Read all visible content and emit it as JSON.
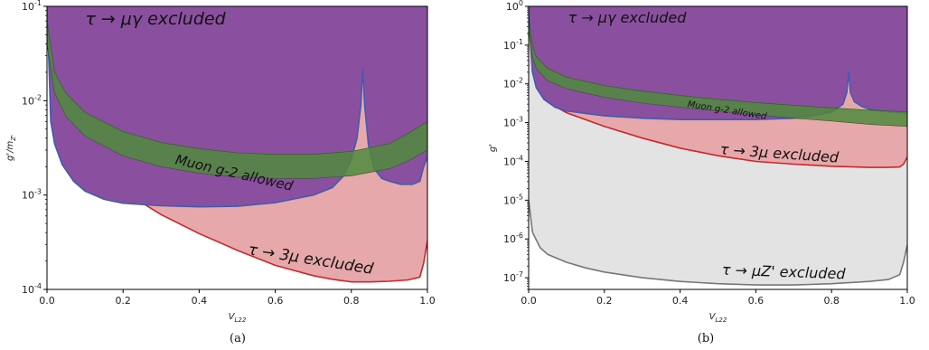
{
  "chart_data": [
    {
      "type": "area",
      "panel_caption": "(a)",
      "xlabel": "V_L22",
      "ylabel": "g'/m_Z'",
      "xlim": [
        0.0,
        1.0
      ],
      "ylim": [
        0.0001,
        0.1
      ],
      "yscale": "log",
      "x_ticks": [
        "0.0",
        "0.2",
        "0.4",
        "0.6",
        "0.8",
        "1.0"
      ],
      "y_ticks": [
        "10^-4",
        "10^-3",
        "10^-2",
        "10^-1"
      ],
      "grid": false,
      "regions": [
        {
          "name": "τ → 3μ excluded",
          "color": "#e6a8aa",
          "edge": "#d2232a",
          "boundary": {
            "x": [
              0.0,
              0.01,
              0.03,
              0.06,
              0.1,
              0.15,
              0.2,
              0.3,
              0.4,
              0.5,
              0.6,
              0.7,
              0.75,
              0.8,
              0.85,
              0.9,
              0.95,
              0.98,
              0.99,
              1.0
            ],
            "y": [
              0.1,
              0.03,
              0.01,
              0.005,
              0.0025,
              0.0016,
              0.0011,
              0.00062,
              0.00039,
              0.00026,
              0.00018,
              0.00014,
              0.000128,
              0.00012,
              0.00012,
              0.000122,
              0.000126,
              0.000135,
              0.00019,
              0.00033
            ]
          }
        },
        {
          "name": "τ → μγ excluded",
          "color": "#8b4f9f",
          "edge": "#3f5bb4",
          "boundary": {
            "x": [
              0.0,
              0.01,
              0.02,
              0.04,
              0.07,
              0.1,
              0.15,
              0.2,
              0.3,
              0.4,
              0.5,
              0.6,
              0.7,
              0.75,
              0.78,
              0.8,
              0.815,
              0.825,
              0.83,
              0.835,
              0.845,
              0.86,
              0.88,
              0.9,
              0.93,
              0.96,
              0.98,
              0.99,
              1.0
            ],
            "y": [
              0.1,
              0.006,
              0.0035,
              0.0021,
              0.0014,
              0.0011,
              0.0009,
              0.00082,
              0.00077,
              0.00075,
              0.00076,
              0.00083,
              0.001,
              0.0012,
              0.0016,
              0.0024,
              0.004,
              0.009,
              0.022,
              0.009,
              0.0034,
              0.0019,
              0.0015,
              0.0014,
              0.0013,
              0.0013,
              0.0014,
              0.002,
              0.0025
            ]
          }
        },
        {
          "name": "Muon g-2 allowed",
          "color": "#4f8a3d",
          "upper": {
            "x": [
              0.0,
              0.02,
              0.05,
              0.1,
              0.2,
              0.3,
              0.4,
              0.5,
              0.6,
              0.7,
              0.8,
              0.9,
              0.95,
              1.0
            ],
            "y": [
              0.07,
              0.02,
              0.012,
              0.0075,
              0.0047,
              0.0036,
              0.0031,
              0.0028,
              0.0027,
              0.0027,
              0.0029,
              0.0035,
              0.0045,
              0.006
            ]
          },
          "lower": {
            "x": [
              0.0,
              0.02,
              0.05,
              0.1,
              0.2,
              0.3,
              0.4,
              0.5,
              0.6,
              0.7,
              0.8,
              0.9,
              0.95,
              1.0
            ],
            "y": [
              0.04,
              0.012,
              0.0068,
              0.0042,
              0.0026,
              0.002,
              0.0017,
              0.00155,
              0.0015,
              0.0015,
              0.0016,
              0.0019,
              0.0023,
              0.003
            ]
          }
        }
      ],
      "annotations": [
        "τ → μγ excluded",
        "Muon g-2 allowed",
        "τ → 3μ excluded"
      ]
    },
    {
      "type": "area",
      "panel_caption": "(b)",
      "xlabel": "V_L22",
      "ylabel": "g'",
      "xlim": [
        0.0,
        1.0
      ],
      "ylim": [
        5e-08,
        1
      ],
      "yscale": "log",
      "x_ticks": [
        "0.0",
        "0.2",
        "0.4",
        "0.6",
        "0.8",
        "1.0"
      ],
      "y_ticks": [
        "10^-7",
        "10^-6",
        "10^-5",
        "10^-4",
        "10^-3",
        "10^-2",
        "10^-1",
        "10^0"
      ],
      "grid": false,
      "regions": [
        {
          "name": "τ → μZ' excluded",
          "color": "#e3e3e3",
          "edge": "#777777",
          "boundary": {
            "x": [
              0.0,
              0.01,
              0.03,
              0.05,
              0.1,
              0.15,
              0.2,
              0.3,
              0.4,
              0.5,
              0.6,
              0.7,
              0.8,
              0.9,
              0.95,
              0.98,
              0.99,
              1.0
            ],
            "y": [
              1e-05,
              1.5e-06,
              6e-07,
              4e-07,
              2.5e-07,
              1.8e-07,
              1.4e-07,
              1e-07,
              8e-08,
              7e-08,
              6.5e-08,
              6.5e-08,
              7e-08,
              8e-08,
              9e-08,
              1.2e-07,
              2.5e-07,
              7e-07
            ]
          }
        },
        {
          "name": "τ → 3μ excluded",
          "color": "#e6a8aa",
          "edge": "#d2232a",
          "boundary": {
            "x": [
              0.0,
              0.01,
              0.03,
              0.06,
              0.1,
              0.2,
              0.3,
              0.4,
              0.5,
              0.6,
              0.7,
              0.8,
              0.9,
              0.95,
              0.98,
              0.99,
              1.0
            ],
            "y": [
              0.5,
              0.02,
              0.006,
              0.003,
              0.0018,
              0.0008,
              0.0004,
              0.00022,
              0.00014,
              0.0001,
              8.5e-05,
              7.5e-05,
              7e-05,
              7e-05,
              7.2e-05,
              8.5e-05,
              0.00013
            ]
          }
        },
        {
          "name": "τ → μγ excluded",
          "color": "#8b4f9f",
          "edge": "#3f5bb4",
          "boundary": {
            "x": [
              0.0,
              0.01,
              0.02,
              0.04,
              0.07,
              0.1,
              0.2,
              0.3,
              0.4,
              0.5,
              0.6,
              0.7,
              0.75,
              0.8,
              0.83,
              0.84,
              0.845,
              0.85,
              0.86,
              0.88,
              0.9,
              0.95,
              1.0
            ],
            "y": [
              1.0,
              0.02,
              0.008,
              0.004,
              0.0025,
              0.002,
              0.0015,
              0.0013,
              0.0012,
              0.0012,
              0.0012,
              0.0013,
              0.0015,
              0.0019,
              0.003,
              0.006,
              0.02,
              0.006,
              0.0035,
              0.0026,
              0.0022,
              0.0019,
              0.0018
            ]
          }
        },
        {
          "name": "Muon g-2 allowed",
          "color": "#4f8a3d",
          "upper": {
            "x": [
              0.0,
              0.01,
              0.02,
              0.05,
              0.1,
              0.2,
              0.3,
              0.4,
              0.5,
              0.6,
              0.7,
              0.8,
              0.9,
              1.0
            ],
            "y": [
              0.5,
              0.1,
              0.05,
              0.025,
              0.015,
              0.009,
              0.0065,
              0.005,
              0.004,
              0.0033,
              0.0028,
              0.0024,
              0.0021,
              0.0019
            ]
          },
          "lower": {
            "x": [
              0.0,
              0.01,
              0.02,
              0.05,
              0.1,
              0.2,
              0.3,
              0.4,
              0.5,
              0.6,
              0.7,
              0.8,
              0.9,
              1.0
            ],
            "y": [
              0.25,
              0.05,
              0.025,
              0.012,
              0.0075,
              0.0045,
              0.0032,
              0.0025,
              0.002,
              0.0016,
              0.0013,
              0.0011,
              0.0009,
              0.0008
            ]
          }
        }
      ],
      "annotations": [
        "τ → μγ excluded",
        "Muon g-2 allowed",
        "τ → 3μ excluded",
        "τ → μZ' excluded"
      ]
    }
  ]
}
